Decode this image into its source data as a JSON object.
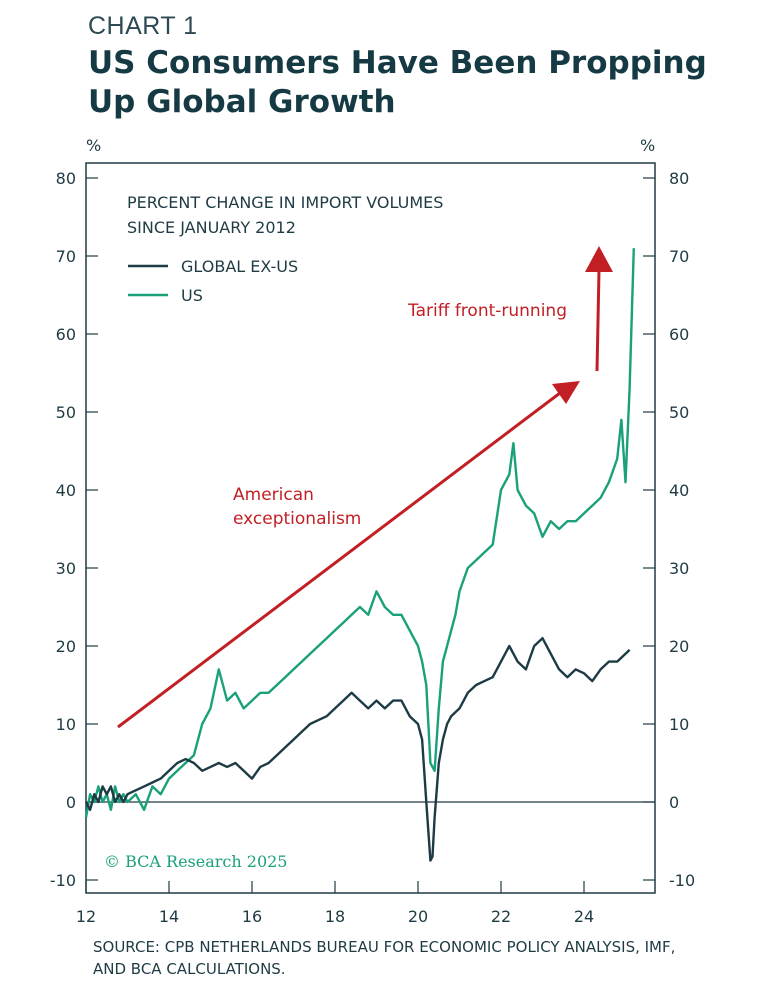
{
  "header": {
    "kicker": "CHART 1",
    "title": "US Consumers Have Been Propping Up Global Growth"
  },
  "footer": {
    "source": "SOURCE: CPB NETHERLANDS BUREAU FOR ECONOMIC POLICY ANALYSIS, IMF, AND BCA CALCULATIONS."
  },
  "watermark": "© BCA Research 2025",
  "colors": {
    "global": "#1d3b44",
    "us": "#1aa07a",
    "arrow": "#c21f24",
    "axis": "#1f3b44"
  },
  "chart_data": {
    "type": "line",
    "title": "PERCENT CHANGE IN IMPORT VOLUMES SINCE JANUARY 2012",
    "y_unit_left": "%",
    "y_unit_right": "%",
    "ylim": [
      -10,
      80
    ],
    "xlim": [
      2012,
      2025.8
    ],
    "y_ticks": [
      -10,
      0,
      10,
      20,
      30,
      40,
      50,
      60,
      70,
      80
    ],
    "x_ticks": [
      2012,
      2014,
      2016,
      2018,
      2020,
      2022,
      2024
    ],
    "x_tick_labels": [
      "12",
      "14",
      "16",
      "18",
      "20",
      "22",
      "24"
    ],
    "grid": false,
    "legend_position": "top-left",
    "annotations": [
      {
        "text": "American exceptionalism"
      },
      {
        "text": "Tariff front-running"
      }
    ],
    "series": [
      {
        "name": "GLOBAL EX-US",
        "x": [
          2012.0,
          2012.1,
          2012.2,
          2012.3,
          2012.4,
          2012.5,
          2012.6,
          2012.7,
          2012.8,
          2012.9,
          2013.0,
          2013.2,
          2013.4,
          2013.6,
          2013.8,
          2014.0,
          2014.2,
          2014.4,
          2014.6,
          2014.8,
          2015.0,
          2015.2,
          2015.4,
          2015.6,
          2015.8,
          2016.0,
          2016.2,
          2016.4,
          2016.6,
          2016.8,
          2017.0,
          2017.2,
          2017.4,
          2017.6,
          2017.8,
          2018.0,
          2018.2,
          2018.4,
          2018.6,
          2018.8,
          2019.0,
          2019.2,
          2019.4,
          2019.6,
          2019.8,
          2020.0,
          2020.1,
          2020.2,
          2020.3,
          2020.35,
          2020.4,
          2020.5,
          2020.6,
          2020.7,
          2020.8,
          2020.9,
          2021.0,
          2021.2,
          2021.4,
          2021.6,
          2021.8,
          2022.0,
          2022.2,
          2022.4,
          2022.6,
          2022.8,
          2023.0,
          2023.2,
          2023.4,
          2023.6,
          2023.8,
          2024.0,
          2024.2,
          2024.4,
          2024.6,
          2024.8,
          2025.0,
          2025.1
        ],
        "values": [
          0,
          -1,
          1,
          0,
          2,
          1,
          2,
          0,
          1,
          0,
          1,
          1.5,
          2,
          2.5,
          3,
          4,
          5,
          5.5,
          5,
          4,
          4.5,
          5,
          4.5,
          5,
          4,
          3,
          4.5,
          5,
          6,
          7,
          8,
          9,
          10,
          10.5,
          11,
          12,
          13,
          14,
          13,
          12,
          13,
          12,
          13,
          13,
          11,
          10,
          8,
          0,
          -7.5,
          -7,
          -2,
          5,
          8,
          10,
          11,
          11.5,
          12,
          14,
          15,
          15.5,
          16,
          18,
          20,
          18,
          17,
          20,
          21,
          19,
          17,
          16,
          17,
          16.5,
          15.5,
          17,
          18,
          18,
          19,
          19.5
        ]
      },
      {
        "name": "US",
        "x": [
          2012.0,
          2012.1,
          2012.2,
          2012.3,
          2012.4,
          2012.5,
          2012.6,
          2012.7,
          2012.8,
          2012.9,
          2013.0,
          2013.2,
          2013.4,
          2013.6,
          2013.8,
          2014.0,
          2014.2,
          2014.4,
          2014.6,
          2014.8,
          2015.0,
          2015.2,
          2015.4,
          2015.6,
          2015.8,
          2016.0,
          2016.2,
          2016.4,
          2016.6,
          2016.8,
          2017.0,
          2017.2,
          2017.4,
          2017.6,
          2017.8,
          2018.0,
          2018.2,
          2018.4,
          2018.6,
          2018.8,
          2019.0,
          2019.2,
          2019.4,
          2019.6,
          2019.8,
          2020.0,
          2020.1,
          2020.2,
          2020.3,
          2020.4,
          2020.5,
          2020.6,
          2020.7,
          2020.8,
          2020.9,
          2021.0,
          2021.2,
          2021.4,
          2021.6,
          2021.8,
          2022.0,
          2022.2,
          2022.3,
          2022.4,
          2022.6,
          2022.8,
          2023.0,
          2023.2,
          2023.4,
          2023.6,
          2023.8,
          2024.0,
          2024.2,
          2024.4,
          2024.6,
          2024.8,
          2024.9,
          2025.0,
          2025.1,
          2025.2
        ],
        "values": [
          -2,
          1,
          0,
          2,
          0,
          1,
          -1,
          2,
          0,
          1,
          0,
          1,
          -1,
          2,
          1,
          3,
          4,
          5,
          6,
          10,
          12,
          17,
          13,
          14,
          12,
          13,
          14,
          14,
          15,
          16,
          17,
          18,
          19,
          20,
          21,
          22,
          23,
          24,
          25,
          24,
          27,
          25,
          24,
          24,
          22,
          20,
          18,
          15,
          5,
          4,
          12,
          18,
          20,
          22,
          24,
          27,
          30,
          31,
          32,
          33,
          40,
          42,
          46,
          40,
          38,
          37,
          34,
          36,
          35,
          36,
          36,
          37,
          38,
          39,
          41,
          44,
          49,
          41,
          53,
          71
        ]
      }
    ]
  }
}
